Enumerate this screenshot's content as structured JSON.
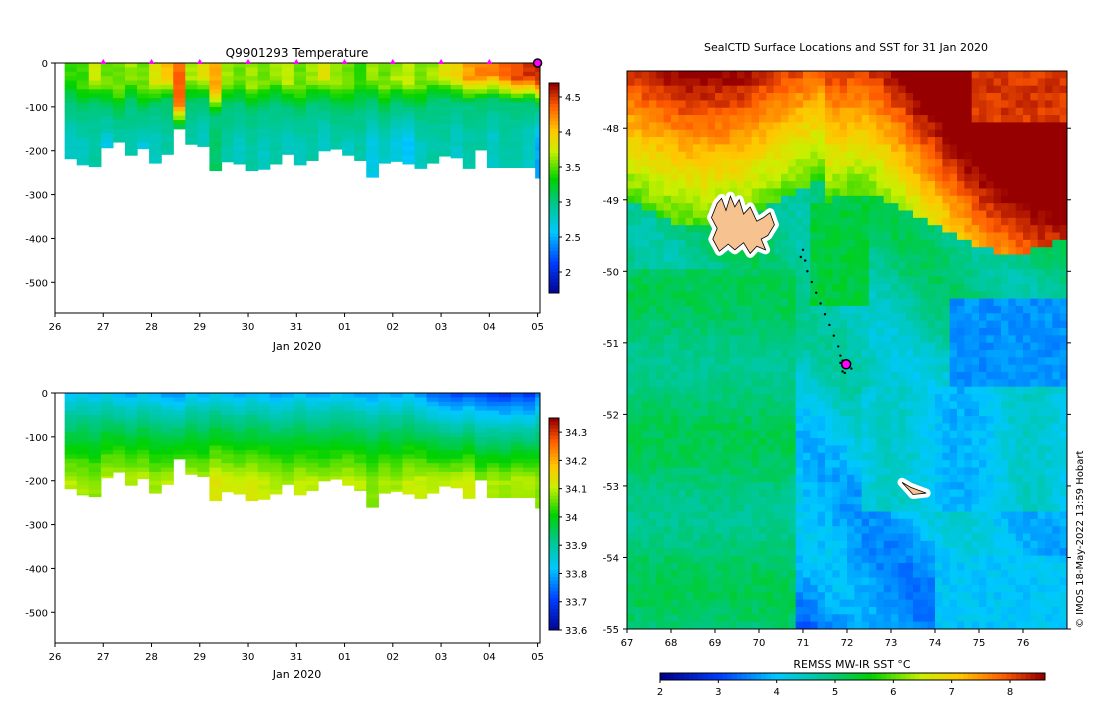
{
  "chart_data": [
    {
      "type": "heatmap",
      "title": "Q9901293  Temperature",
      "xlabel": "Jan 2020",
      "ylabel": "",
      "x_tick_labels": [
        "26",
        "27",
        "28",
        "29",
        "30",
        "31",
        "01",
        "02",
        "03",
        "04",
        "05"
      ],
      "x_tick_days": [
        0,
        1,
        2,
        3,
        4,
        5,
        6,
        7,
        8,
        9,
        10
      ],
      "xlim_days": [
        0,
        10.05
      ],
      "y_tick_labels": [
        "0",
        "-100",
        "-200",
        "-300",
        "-400",
        "-500"
      ],
      "y_ticks": [
        0,
        -100,
        -200,
        -300,
        -400,
        -500
      ],
      "ylim": [
        -570,
        0
      ],
      "colorbar": {
        "min": 1.7,
        "max": 4.7,
        "tick_labels": [
          "2",
          "2.5",
          "3",
          "3.5",
          "4",
          "4.5"
        ],
        "ticks": [
          2,
          2.5,
          3,
          3.5,
          4,
          4.5
        ]
      },
      "profile_marker_days": [
        1,
        2,
        3,
        4,
        5,
        6,
        7,
        8,
        9,
        10
      ],
      "profile_marker_color": "#ff00ff",
      "profiles": {
        "start_day": 0.2,
        "step_days": 0.25,
        "max_depth": [
          -218,
          -232,
          -236,
          -193,
          -180,
          -210,
          -195,
          -228,
          -208,
          -150,
          -185,
          -190,
          -245,
          -225,
          -230,
          -245,
          -242,
          -230,
          -208,
          -232,
          -222,
          -200,
          -196,
          -210,
          -222,
          -260,
          -228,
          -224,
          -230,
          -240,
          -228,
          -212,
          -216,
          -240,
          -198,
          -238,
          -238,
          -238,
          -238,
          -262
        ],
        "surface_temp": [
          3.5,
          3.5,
          3.8,
          3.6,
          3.6,
          3.7,
          3.6,
          3.9,
          4.1,
          4.4,
          3.7,
          3.9,
          4.2,
          3.7,
          3.6,
          3.7,
          3.6,
          3.7,
          3.8,
          3.6,
          3.7,
          3.9,
          3.7,
          3.6,
          3.5,
          3.7,
          3.6,
          3.7,
          3.8,
          3.6,
          3.7,
          3.9,
          4.0,
          4.2,
          4.3,
          4.3,
          4.4,
          4.5,
          4.6,
          4.6
        ],
        "mixed_depth": [
          -30,
          -50,
          -35,
          -45,
          -60,
          -30,
          -55,
          -40,
          -30,
          -90,
          -35,
          -30,
          -60,
          -40,
          -35,
          -50,
          -45,
          -30,
          -40,
          -55,
          -35,
          -30,
          -45,
          -50,
          -40,
          -30,
          -55,
          -35,
          -40,
          -50,
          -30,
          -25,
          -30,
          -35,
          -30,
          -25,
          -30,
          -35,
          -30,
          -40
        ],
        "deep_temp": [
          2.8,
          2.8,
          2.9,
          2.7,
          2.8,
          2.9,
          2.7,
          2.8,
          2.9,
          2.7,
          2.9,
          2.8,
          3.1,
          2.9,
          2.8,
          2.9,
          2.8,
          2.9,
          2.8,
          2.8,
          2.9,
          2.8,
          2.9,
          2.8,
          2.9,
          2.7,
          2.8,
          2.7,
          2.6,
          2.8,
          2.9,
          2.9,
          2.8,
          2.9,
          2.9,
          2.8,
          2.9,
          2.9,
          2.8,
          2.5
        ]
      }
    },
    {
      "type": "heatmap",
      "title": "",
      "xlabel": "Jan 2020",
      "ylabel": "",
      "x_tick_labels": [
        "26",
        "27",
        "28",
        "29",
        "30",
        "31",
        "01",
        "02",
        "03",
        "04",
        "05"
      ],
      "x_tick_days": [
        0,
        1,
        2,
        3,
        4,
        5,
        6,
        7,
        8,
        9,
        10
      ],
      "xlim_days": [
        0,
        10.05
      ],
      "y_tick_labels": [
        "0",
        "-100",
        "-200",
        "-300",
        "-400",
        "-500"
      ],
      "y_ticks": [
        0,
        -100,
        -200,
        -300,
        -400,
        -500
      ],
      "ylim": [
        -570,
        0
      ],
      "colorbar": {
        "min": 33.6,
        "max": 34.35,
        "tick_labels": [
          "33.6",
          "33.7",
          "33.8",
          "33.9",
          "34",
          "34.1",
          "34.2",
          "34.3"
        ],
        "ticks": [
          33.6,
          33.7,
          33.8,
          33.9,
          34.0,
          34.1,
          34.2,
          34.3
        ]
      },
      "profiles": {
        "surface_sal": [
          33.8,
          33.82,
          33.81,
          33.83,
          33.8,
          33.79,
          33.82,
          33.8,
          33.78,
          33.76,
          33.81,
          33.8,
          33.82,
          33.8,
          33.79,
          33.81,
          33.8,
          33.78,
          33.8,
          33.81,
          33.79,
          33.8,
          33.81,
          33.8,
          33.79,
          33.78,
          33.8,
          33.79,
          33.8,
          33.77,
          33.74,
          33.72,
          33.7,
          33.72,
          33.7,
          33.69,
          33.68,
          33.7,
          33.68,
          33.75
        ],
        "deep_sal": [
          34.1,
          34.09,
          34.08,
          34.11,
          34.12,
          34.1,
          34.11,
          34.09,
          34.1,
          34.12,
          34.11,
          34.1,
          34.13,
          34.12,
          34.11,
          34.12,
          34.11,
          34.1,
          34.09,
          34.11,
          34.1,
          34.09,
          34.1,
          34.11,
          34.1,
          34.08,
          34.1,
          34.09,
          34.11,
          34.11,
          34.1,
          34.1,
          34.11,
          34.12,
          34.08,
          34.1,
          34.09,
          34.1,
          34.1,
          34.08
        ]
      }
    },
    {
      "type": "heatmap",
      "title": "SealCTD Surface Locations and SST for 31 Jan 2020",
      "xlabel": "REMSS MW-IR SST °C",
      "ylabel": "",
      "x_tick_labels": [
        "67",
        "68",
        "69",
        "70",
        "71",
        "72",
        "73",
        "74",
        "75",
        "76"
      ],
      "x_ticks": [
        67,
        68,
        69,
        70,
        71,
        72,
        73,
        74,
        75,
        76
      ],
      "xlim": [
        67,
        77
      ],
      "y_tick_labels": [
        "-48",
        "-49",
        "-50",
        "-51",
        "-52",
        "-53",
        "-54",
        "-55"
      ],
      "y_ticks": [
        -48,
        -49,
        -50,
        -51,
        -52,
        -53,
        -54,
        -55
      ],
      "ylim": [
        -55,
        -47.2
      ],
      "colorbar": {
        "min": 2,
        "max": 8.6,
        "tick_labels": [
          "2",
          "3",
          "4",
          "5",
          "6",
          "7",
          "8"
        ],
        "ticks": [
          2,
          3,
          4,
          5,
          6,
          7,
          8
        ]
      },
      "track": [
        [
          71.0,
          -49.7
        ],
        [
          71.05,
          -49.85
        ],
        [
          70.95,
          -49.8
        ],
        [
          71.1,
          -50.0
        ],
        [
          71.2,
          -50.15
        ],
        [
          71.3,
          -50.3
        ],
        [
          71.4,
          -50.45
        ],
        [
          71.5,
          -50.6
        ],
        [
          71.6,
          -50.75
        ],
        [
          71.7,
          -50.9
        ],
        [
          71.8,
          -51.05
        ],
        [
          71.85,
          -51.18
        ],
        [
          71.9,
          -51.25
        ],
        [
          71.95,
          -51.32
        ],
        [
          72.0,
          -51.35
        ],
        [
          71.9,
          -51.4
        ],
        [
          72.05,
          -51.3
        ],
        [
          71.85,
          -51.28
        ],
        [
          72.1,
          -51.36
        ],
        [
          71.95,
          -51.42
        ]
      ],
      "current_position": [
        71.98,
        -51.3
      ],
      "marker_color": "#ff00ff",
      "islands": [
        {
          "name": "",
          "polygon": [
            [
              69.05,
              -49.05
            ],
            [
              69.15,
              -48.98
            ],
            [
              69.25,
              -49.15
            ],
            [
              69.35,
              -48.95
            ],
            [
              69.45,
              -49.1
            ],
            [
              69.55,
              -49.0
            ],
            [
              69.65,
              -49.2
            ],
            [
              69.8,
              -49.1
            ],
            [
              69.95,
              -49.3
            ],
            [
              70.1,
              -49.25
            ],
            [
              70.25,
              -49.18
            ],
            [
              70.35,
              -49.35
            ],
            [
              70.2,
              -49.5
            ],
            [
              70.05,
              -49.55
            ],
            [
              70.15,
              -49.7
            ],
            [
              69.95,
              -49.65
            ],
            [
              69.8,
              -49.75
            ],
            [
              69.65,
              -49.6
            ],
            [
              69.45,
              -49.7
            ],
            [
              69.3,
              -49.62
            ],
            [
              69.1,
              -49.72
            ],
            [
              68.95,
              -49.55
            ],
            [
              69.05,
              -49.4
            ],
            [
              68.92,
              -49.25
            ]
          ]
        },
        {
          "name": "",
          "polygon": [
            [
              73.25,
              -52.95
            ],
            [
              73.45,
              -53.02
            ],
            [
              73.8,
              -53.1
            ],
            [
              73.5,
              -53.12
            ],
            [
              73.4,
              -53.05
            ]
          ]
        }
      ],
      "credit": "© IMOS 18-May-2022 13:59 Hobart"
    }
  ]
}
